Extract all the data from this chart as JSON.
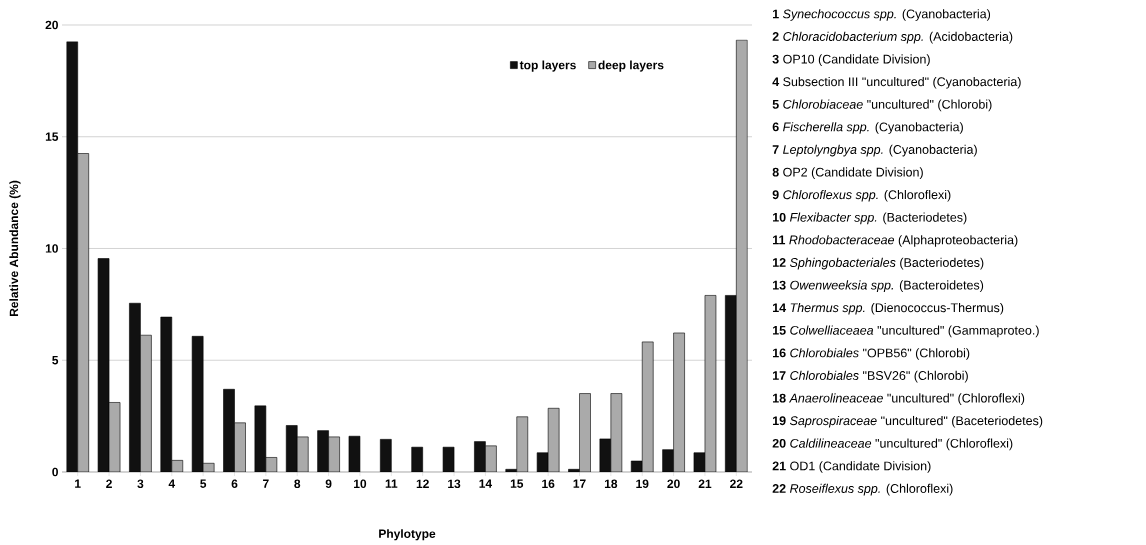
{
  "chart_data": {
    "type": "bar",
    "xlabel": "Phylotype",
    "ylabel": "Relative Abundance (%)",
    "categories": [
      "1",
      "2",
      "3",
      "4",
      "5",
      "6",
      "7",
      "8",
      "9",
      "10",
      "11",
      "12",
      "13",
      "14",
      "15",
      "16",
      "17",
      "18",
      "19",
      "20",
      "21",
      "22"
    ],
    "series": [
      {
        "name": "top layers",
        "color": "#111111",
        "values": [
          19.25,
          9.55,
          7.55,
          6.93,
          6.07,
          3.7,
          2.96,
          2.08,
          1.85,
          1.6,
          1.46,
          1.11,
          1.11,
          1.36,
          0.12,
          0.86,
          0.12,
          1.48,
          0.49,
          1.0,
          0.86,
          7.9
        ]
      },
      {
        "name": "deep layers",
        "color": "#aaaaaa",
        "values": [
          14.25,
          3.11,
          6.12,
          0.52,
          0.39,
          2.2,
          0.65,
          1.57,
          1.57,
          null,
          null,
          null,
          null,
          1.17,
          2.47,
          2.85,
          3.51,
          3.51,
          5.82,
          6.22,
          7.9,
          19.32
        ]
      }
    ],
    "ylim": [
      0,
      20
    ],
    "yticks": [
      0,
      5,
      10,
      15,
      20
    ],
    "grid": "y",
    "legend": "top right",
    "annotations": [
      "**1** *Synechococcus spp.* (Cyanobacteria)",
      "**2** *Chloracidobacterium spp.* (Acidobacteria)",
      "**3** OP10 (Candidate Division)",
      "**4** Subsection III \"uncultured\" (Cyanobacteria)",
      "**5** *Chlorobiaceae* \"uncultured\" (Chlorobi)",
      "**6** *Fischerella spp.* (Cyanobacteria)",
      "**7** *Leptolyngbya spp.* (Cyanobacteria)",
      "**8** OP2 (Candidate Division)",
      "**9** *Chloroflexus spp.* (Chloroflexi)",
      "**10** *Flexibacter spp.* (Bacteriodetes)",
      "**11** *Rhodobacteraceae* (Alphaproteobacteria)",
      "**12** *Sphingobacteriales* (Bacteriodetes)",
      "**13** *Owenweeksia spp.* (Bacteroidetes)",
      "**14** *Thermus spp.* (Dienococcus-Thermus)",
      "**15** *Colwelliaceaea* \"uncultured\" (Gammaproteo.)",
      "**16** *Chlorobiales* \"OPB56\" (Chlorobi)",
      "**17** *Chlorobiales* \"BSV26\" (Chlorobi)",
      "**18** *Anaerolineaceae* \"uncultured\" (Chloroflexi)",
      "**19** *Saprospiraceae* \"uncultured\" (Baceteriodetes)",
      "**20** *Caldilineaceae* \"uncultured\" (Chloroflexi)",
      "**21** OD1 (Candidate Division)",
      "**22** *Roseiflexus spp.* (Chloroflexi)"
    ]
  }
}
